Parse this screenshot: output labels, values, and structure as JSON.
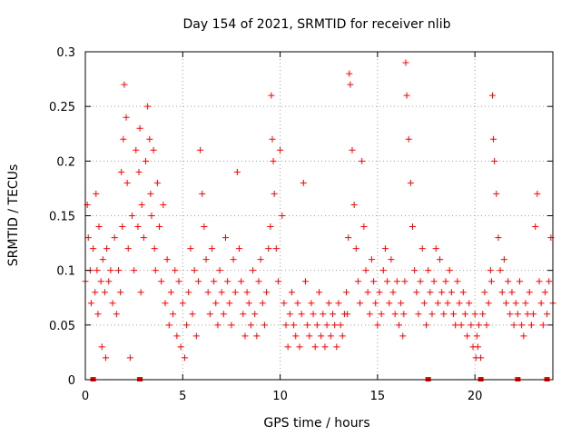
{
  "chart_data": {
    "type": "scatter",
    "title": "Day 154 of 2021, SRMTID for receiver nlib",
    "xlabel": "GPS time / hours",
    "ylabel": "SRMTID / TECUs",
    "xlim": [
      0,
      24
    ],
    "ylim": [
      0,
      0.3
    ],
    "xticks": [
      0,
      5,
      10,
      15,
      20
    ],
    "xtick_labels": [
      "0",
      "5",
      "10",
      "15",
      "20"
    ],
    "yticks": [
      0,
      0.05,
      0.1,
      0.15,
      0.2,
      0.25,
      0.3
    ],
    "ytick_labels": [
      "0",
      "0.05",
      "0.1",
      "0.15",
      "0.2",
      "0.25",
      "0.3"
    ],
    "grid": true,
    "marker": "+",
    "color": "#ff0000",
    "series": [
      {
        "name": "SRMTID",
        "x": [
          0.0,
          0.1,
          0.15,
          0.25,
          0.3,
          0.4,
          0.5,
          0.55,
          0.6,
          0.65,
          0.7,
          0.8,
          0.85,
          0.9,
          1.0,
          1.05,
          1.1,
          1.2,
          1.3,
          1.4,
          1.5,
          1.6,
          1.7,
          1.8,
          1.85,
          1.9,
          1.95,
          2.0,
          2.1,
          2.15,
          2.2,
          2.3,
          2.4,
          2.5,
          2.6,
          2.7,
          2.75,
          2.8,
          2.85,
          2.9,
          3.0,
          3.1,
          3.2,
          3.3,
          3.35,
          3.4,
          3.5,
          3.55,
          3.6,
          3.7,
          3.8,
          3.9,
          4.0,
          4.1,
          4.2,
          4.3,
          4.4,
          4.5,
          4.6,
          4.7,
          4.8,
          4.9,
          5.0,
          5.1,
          5.2,
          5.3,
          5.4,
          5.5,
          5.6,
          5.7,
          5.8,
          5.9,
          6.0,
          6.1,
          6.2,
          6.3,
          6.4,
          6.5,
          6.6,
          6.7,
          6.8,
          6.9,
          7.0,
          7.1,
          7.2,
          7.3,
          7.4,
          7.5,
          7.6,
          7.7,
          7.8,
          7.9,
          8.0,
          8.1,
          8.2,
          8.3,
          8.4,
          8.5,
          8.6,
          8.7,
          8.8,
          8.9,
          9.0,
          9.1,
          9.2,
          9.3,
          9.4,
          9.5,
          9.55,
          9.6,
          9.65,
          9.7,
          9.8,
          9.9,
          10.0,
          10.1,
          10.2,
          10.3,
          10.4,
          10.5,
          10.6,
          10.7,
          10.8,
          10.9,
          11.0,
          11.1,
          11.2,
          11.3,
          11.4,
          11.5,
          11.6,
          11.7,
          11.8,
          11.9,
          12.0,
          12.1,
          12.2,
          12.3,
          12.4,
          12.5,
          12.6,
          12.7,
          12.8,
          12.9,
          13.0,
          13.1,
          13.2,
          13.3,
          13.4,
          13.45,
          13.5,
          13.55,
          13.6,
          13.7,
          13.8,
          13.9,
          14.0,
          14.1,
          14.2,
          14.3,
          14.4,
          14.5,
          14.6,
          14.7,
          14.8,
          14.9,
          15.0,
          15.1,
          15.2,
          15.3,
          15.4,
          15.5,
          15.6,
          15.7,
          15.8,
          15.9,
          16.0,
          16.1,
          16.2,
          16.3,
          16.35,
          16.4,
          16.45,
          16.5,
          16.6,
          16.7,
          16.8,
          16.9,
          17.0,
          17.1,
          17.2,
          17.3,
          17.4,
          17.5,
          17.6,
          17.7,
          17.8,
          17.9,
          18.0,
          18.1,
          18.2,
          18.3,
          18.4,
          18.5,
          18.6,
          18.7,
          18.8,
          18.9,
          19.0,
          19.1,
          19.2,
          19.3,
          19.4,
          19.5,
          19.6,
          19.7,
          19.8,
          19.9,
          20.0,
          20.05,
          20.1,
          20.15,
          20.2,
          20.3,
          20.4,
          20.5,
          20.6,
          20.7,
          20.8,
          20.85,
          20.9,
          20.95,
          21.0,
          21.1,
          21.2,
          21.3,
          21.4,
          21.5,
          21.6,
          21.7,
          21.8,
          21.9,
          22.0,
          22.1,
          22.2,
          22.3,
          22.4,
          22.5,
          22.6,
          22.7,
          22.8,
          22.9,
          23.0,
          23.1,
          23.2,
          23.3,
          23.4,
          23.5,
          23.6,
          23.7,
          23.8,
          23.9,
          24.0
        ],
        "y": [
          0.09,
          0.16,
          0.13,
          0.1,
          0.07,
          0.12,
          0.08,
          0.17,
          0.1,
          0.06,
          0.14,
          0.09,
          0.03,
          0.11,
          0.08,
          0.02,
          0.12,
          0.09,
          0.1,
          0.07,
          0.13,
          0.06,
          0.1,
          0.08,
          0.19,
          0.14,
          0.22,
          0.27,
          0.24,
          0.18,
          0.12,
          0.02,
          0.15,
          0.1,
          0.21,
          0.14,
          0.19,
          0.23,
          0.08,
          0.16,
          0.13,
          0.2,
          0.25,
          0.22,
          0.17,
          0.15,
          0.21,
          0.12,
          0.1,
          0.18,
          0.14,
          0.09,
          0.16,
          0.07,
          0.11,
          0.05,
          0.08,
          0.06,
          0.1,
          0.04,
          0.09,
          0.03,
          0.07,
          0.02,
          0.05,
          0.08,
          0.12,
          0.06,
          0.1,
          0.04,
          0.09,
          0.21,
          0.17,
          0.14,
          0.11,
          0.08,
          0.06,
          0.12,
          0.09,
          0.07,
          0.05,
          0.1,
          0.08,
          0.06,
          0.13,
          0.09,
          0.07,
          0.05,
          0.11,
          0.08,
          0.19,
          0.12,
          0.09,
          0.06,
          0.04,
          0.08,
          0.07,
          0.05,
          0.1,
          0.06,
          0.04,
          0.09,
          0.11,
          0.07,
          0.05,
          0.08,
          0.12,
          0.14,
          0.26,
          0.22,
          0.2,
          0.17,
          0.12,
          0.09,
          0.21,
          0.15,
          0.07,
          0.05,
          0.03,
          0.06,
          0.08,
          0.05,
          0.04,
          0.07,
          0.03,
          0.06,
          0.18,
          0.09,
          0.05,
          0.04,
          0.07,
          0.06,
          0.03,
          0.05,
          0.08,
          0.04,
          0.06,
          0.03,
          0.05,
          0.07,
          0.04,
          0.06,
          0.05,
          0.03,
          0.07,
          0.05,
          0.04,
          0.06,
          0.08,
          0.06,
          0.13,
          0.28,
          0.27,
          0.21,
          0.16,
          0.12,
          0.09,
          0.07,
          0.2,
          0.14,
          0.1,
          0.08,
          0.06,
          0.11,
          0.09,
          0.07,
          0.05,
          0.08,
          0.06,
          0.1,
          0.12,
          0.09,
          0.07,
          0.11,
          0.08,
          0.06,
          0.09,
          0.05,
          0.07,
          0.04,
          0.06,
          0.09,
          0.29,
          0.26,
          0.22,
          0.18,
          0.14,
          0.1,
          0.08,
          0.06,
          0.09,
          0.12,
          0.07,
          0.05,
          0.1,
          0.08,
          0.06,
          0.09,
          0.12,
          0.07,
          0.11,
          0.08,
          0.06,
          0.09,
          0.07,
          0.1,
          0.08,
          0.06,
          0.05,
          0.09,
          0.07,
          0.05,
          0.08,
          0.06,
          0.04,
          0.07,
          0.05,
          0.03,
          0.06,
          0.02,
          0.04,
          0.03,
          0.05,
          0.02,
          0.06,
          0.08,
          0.05,
          0.07,
          0.1,
          0.09,
          0.26,
          0.22,
          0.2,
          0.17,
          0.13,
          0.1,
          0.08,
          0.11,
          0.07,
          0.09,
          0.06,
          0.08,
          0.05,
          0.07,
          0.06,
          0.09,
          0.05,
          0.04,
          0.07,
          0.06,
          0.08,
          0.05,
          0.06,
          0.14,
          0.17,
          0.09,
          0.07,
          0.05,
          0.08,
          0.06,
          0.09,
          0.13,
          0.07
        ]
      }
    ],
    "x_markers": [
      0.4,
      2.8,
      17.6,
      20.3,
      22.2,
      23.7
    ]
  }
}
